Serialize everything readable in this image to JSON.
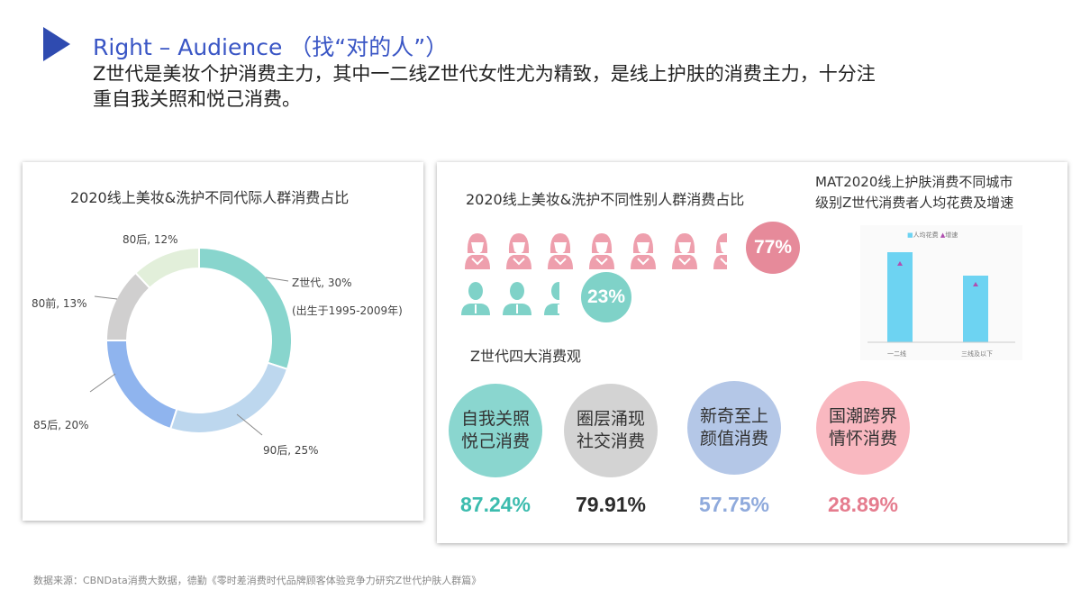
{
  "header": {
    "title": "Right – Audience （找“对的人”）",
    "subtitle_line1": "Z世代是美妆个护消费主力，其中一二线Z世代女性尤为精致，是线上护肤的消费主力，十分注",
    "subtitle_line2": "重自我关照和悦己消费。",
    "accent_color": "#2f4bb0"
  },
  "chart_data": [
    {
      "type": "pie",
      "donut": true,
      "title": "2020线上美妆&洗护不同代际人群消费占比",
      "slices": [
        {
          "label": "Z世代, 30%",
          "note": "(出生于1995-2009年)",
          "value": 30,
          "color": "#88d5cd"
        },
        {
          "label": "90后, 25%",
          "value": 25,
          "color": "#bdd7ee"
        },
        {
          "label": "85后, 20%",
          "value": 20,
          "color": "#8fb4ee"
        },
        {
          "label": "80前, 13%",
          "value": 13,
          "color": "#d0cfcf"
        },
        {
          "label": "80后, 12%",
          "value": 12,
          "color": "#e2efda"
        }
      ]
    },
    {
      "type": "bar",
      "title_line1": "MAT2020线上护肤消费不同城市",
      "title_line2": "级别Z世代消费者人均花费及增速",
      "categories": [
        "一二线",
        "三线及以下"
      ],
      "legend": [
        "人均花费",
        "增速"
      ],
      "legend_placement": "top",
      "series": [
        {
          "name": "人均花费",
          "values": [
            100,
            74
          ],
          "color": "#6dd3f2"
        },
        {
          "name": "增速",
          "values": [
            87,
            64
          ],
          "color": "#b04fb0"
        }
      ]
    },
    {
      "type": "pictogram",
      "title": "2020线上美妆&洗护不同性别人群消费占比",
      "female": {
        "value": 77,
        "label": "77%",
        "icons": 6.6,
        "color": "#ee9fad",
        "badge_color": "#e68a9a"
      },
      "male": {
        "value": 23,
        "label": "23%",
        "icons": 2.3,
        "color": "#7fd2c8",
        "badge_color": "#7fd2c8"
      }
    }
  ],
  "values": {
    "title": "Z世代四大消费观",
    "items": [
      {
        "line1": "自我关照",
        "line2": "悦己消费",
        "pct": "87.24%",
        "circle": "#8ad6cf",
        "text": "#3cbcae"
      },
      {
        "line1": "圈层涌现",
        "line2": "社交消费",
        "pct": "79.91%",
        "circle": "#d3d3d3",
        "text": "#2c2c2c"
      },
      {
        "line1": "新奇至上",
        "line2": "颜值消费",
        "pct": "57.75%",
        "circle": "#b4c7e7",
        "text": "#8faadc"
      },
      {
        "line1": "国潮跨界",
        "line2": "情怀消费",
        "pct": "28.89%",
        "circle": "#f9b8c0",
        "text": "#e57c8e"
      }
    ]
  },
  "footer": {
    "source": "数据来源：CBNData消费大数据，德勤《零时差消费时代品牌顾客体验竞争力研究Z世代护肤人群篇》"
  }
}
